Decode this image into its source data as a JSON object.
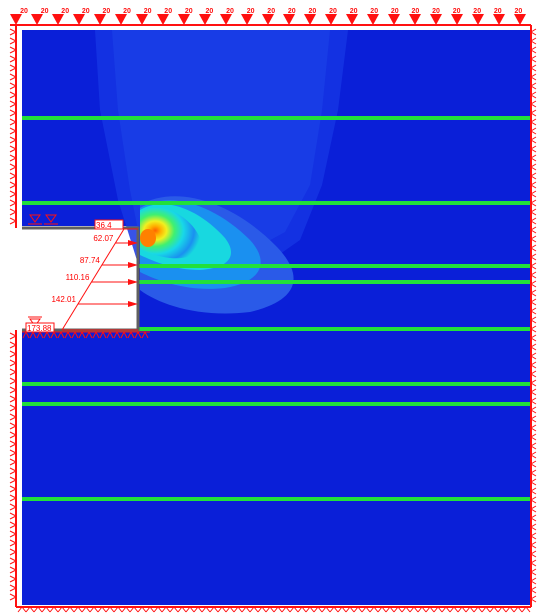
{
  "top_load_labels": [
    "20",
    "20",
    "20",
    "20",
    "20",
    "20",
    "20",
    "20",
    "20",
    "20",
    "20",
    "20",
    "20",
    "20",
    "20",
    "20",
    "20",
    "20",
    "20",
    "20",
    "20",
    "20",
    "20",
    "20",
    "20"
  ],
  "pressure_labels": [
    "36.4",
    "62.07",
    "87.74",
    "110.16",
    "142.01",
    "173.88"
  ],
  "colors": {
    "background_field": "#0a1fd8",
    "layer_line": "#22e03a",
    "support": "#ff1010",
    "wall": "#606060",
    "plume_outer": "#2a5ae8",
    "plume_mid": "#1aa0f0",
    "plume_cyan": "#18e0e0",
    "plume_green": "#40f070",
    "plume_yellow": "#f0f020",
    "plume_orange": "#ff8000"
  }
}
